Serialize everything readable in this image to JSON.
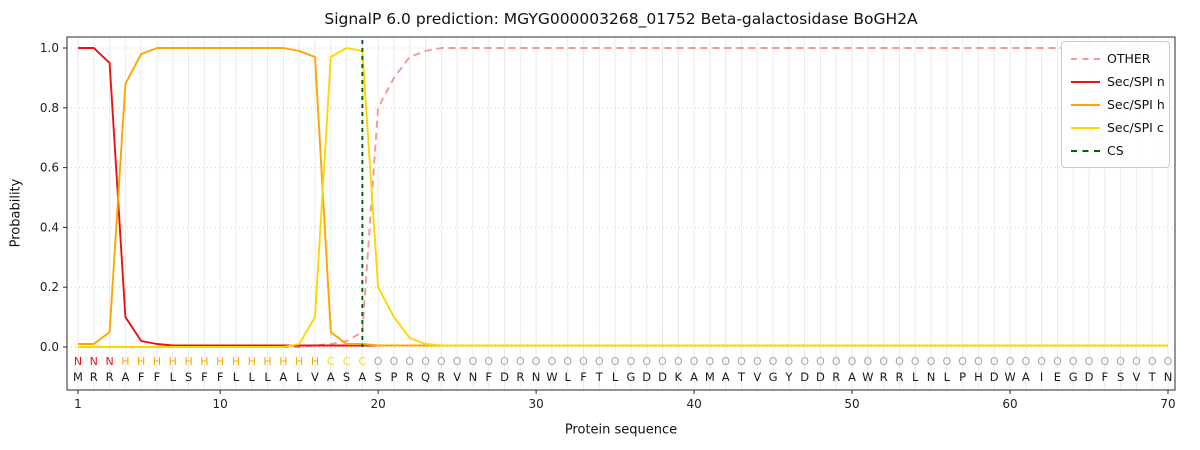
{
  "chart": {
    "title": "SignalP 6.0 prediction: MGYG000003268_01752 Beta-galactosidase BoGH2A",
    "xlabel": "Protein sequence",
    "ylabel": "Probability"
  },
  "chart_data": {
    "type": "line",
    "title": "SignalP 6.0 prediction: MGYG000003268_01752 Beta-galactosidase BoGH2A",
    "xlabel": "Protein sequence",
    "ylabel": "Probability",
    "x_range": [
      1,
      70
    ],
    "ylim": [
      0.0,
      1.0
    ],
    "xticks": [
      1,
      10,
      20,
      30,
      40,
      50,
      60,
      70
    ],
    "yticks": [
      0.0,
      0.2,
      0.4,
      0.6,
      0.8,
      1.0
    ],
    "grid": true,
    "legend_position": "upper right",
    "series": [
      {
        "name": "OTHER",
        "color": "#f19999",
        "dash": true,
        "values": [
          0,
          0,
          0,
          0,
          0,
          0,
          0,
          0,
          0,
          0,
          0,
          0,
          0,
          0,
          0,
          0.005,
          0.01,
          0.02,
          0.05,
          0.8,
          0.9,
          0.97,
          0.99,
          1,
          1,
          1,
          1,
          1,
          1,
          1,
          1,
          1,
          1,
          1,
          1,
          1,
          1,
          1,
          1,
          1,
          1,
          1,
          1,
          1,
          1,
          1,
          1,
          1,
          1,
          1,
          1,
          1,
          1,
          1,
          1,
          1,
          1,
          1,
          1,
          1,
          1,
          1,
          1,
          1,
          1,
          1,
          1,
          1,
          1,
          1
        ]
      },
      {
        "name": "Sec/SPI n",
        "color": "#ee1111",
        "dash": false,
        "values": [
          1,
          1,
          0.95,
          0.1,
          0.02,
          0.01,
          0.005,
          0.005,
          0.005,
          0.005,
          0.005,
          0.005,
          0.005,
          0.005,
          0.005,
          0.005,
          0.005,
          0.005,
          0.005,
          0.005,
          0.005,
          0.005,
          0.005,
          0.005,
          0.005,
          0.005,
          0.005,
          0.005,
          0.005,
          0.005,
          0.005,
          0.005,
          0.005,
          0.005,
          0.005,
          0.005,
          0.005,
          0.005,
          0.005,
          0.005,
          0.005,
          0.005,
          0.005,
          0.005,
          0.005,
          0.005,
          0.005,
          0.005,
          0.005,
          0.005,
          0.005,
          0.005,
          0.005,
          0.005,
          0.005,
          0.005,
          0.005,
          0.005,
          0.005,
          0.005,
          0.005,
          0.005,
          0.005,
          0.005,
          0.005,
          0.005,
          0.005,
          0.005,
          0.005,
          0.005
        ]
      },
      {
        "name": "Sec/SPI h",
        "color": "#ffa500",
        "dash": false,
        "values": [
          0.01,
          0.01,
          0.05,
          0.88,
          0.98,
          1,
          1,
          1,
          1,
          1,
          1,
          1,
          1,
          1,
          0.99,
          0.97,
          0.05,
          0.01,
          0.01,
          0.005,
          0.005,
          0.005,
          0.005,
          0.005,
          0.005,
          0.005,
          0.005,
          0.005,
          0.005,
          0.005,
          0.005,
          0.005,
          0.005,
          0.005,
          0.005,
          0.005,
          0.005,
          0.005,
          0.005,
          0.005,
          0.005,
          0.005,
          0.005,
          0.005,
          0.005,
          0.005,
          0.005,
          0.005,
          0.005,
          0.005,
          0.005,
          0.005,
          0.005,
          0.005,
          0.005,
          0.005,
          0.005,
          0.005,
          0.005,
          0.005,
          0.005,
          0.005,
          0.005,
          0.005,
          0.005,
          0.005,
          0.005,
          0.005,
          0.005,
          0.005
        ]
      },
      {
        "name": "Sec/SPI c",
        "color": "#ffd700",
        "dash": false,
        "values": [
          0,
          0,
          0,
          0,
          0,
          0,
          0,
          0,
          0,
          0,
          0,
          0,
          0,
          0,
          0.01,
          0.1,
          0.97,
          1,
          0.99,
          0.2,
          0.1,
          0.03,
          0.01,
          0.005,
          0.005,
          0.005,
          0.005,
          0.005,
          0.005,
          0.005,
          0.005,
          0.005,
          0.005,
          0.005,
          0.005,
          0.005,
          0.005,
          0.005,
          0.005,
          0.005,
          0.005,
          0.005,
          0.005,
          0.005,
          0.005,
          0.005,
          0.005,
          0.005,
          0.005,
          0.005,
          0.005,
          0.005,
          0.005,
          0.005,
          0.005,
          0.005,
          0.005,
          0.005,
          0.005,
          0.005,
          0.005,
          0.005,
          0.005,
          0.005,
          0.005,
          0.005,
          0.005,
          0.005,
          0.005,
          0.005
        ]
      }
    ],
    "cs_position": 19,
    "cs_color": "#006400",
    "sequence": "MRRAFFLSFFLLLALVASASPRQRVNFDRNWLFTLGDDKAMATVGYDDRAWRRLNLPHDWAIEGDFSVTN",
    "region_labels": "NNNHHHHHHHHHHHHHCCCOOOOOOOOOOOOOOOOOOOOOOOOOOOOOOOOOOOOOOOOOOOOOOOOOOO",
    "region_colors": {
      "N": "#ee1111",
      "H": "#ffa500",
      "C": "#ffd700",
      "O": "#a6a6a6"
    },
    "legend": [
      {
        "label": "OTHER",
        "color": "#f19999",
        "dash": true
      },
      {
        "label": "Sec/SPI n",
        "color": "#ee1111",
        "dash": false
      },
      {
        "label": "Sec/SPI h",
        "color": "#ffa500",
        "dash": false
      },
      {
        "label": "Sec/SPI c",
        "color": "#ffd700",
        "dash": false
      },
      {
        "label": "CS",
        "color": "#006400",
        "dash": true
      }
    ],
    "style": {
      "grid_vertical": "#ebebeb",
      "grid_horizontal": "#d2d2d2",
      "spine": "#2b2b2b",
      "background": "#ffffff"
    }
  }
}
